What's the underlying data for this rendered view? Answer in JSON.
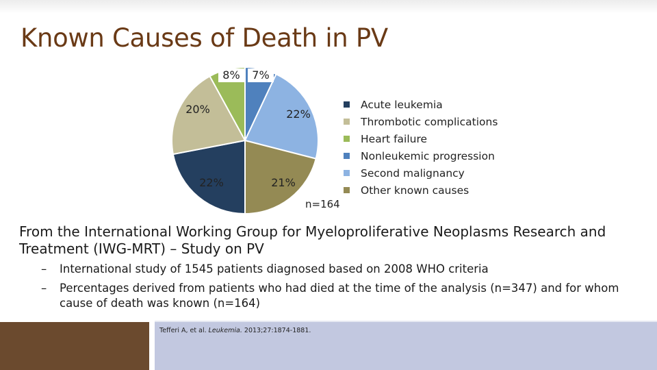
{
  "slide": {
    "title": "Known Causes of Death in PV",
    "source_line": "From the International Working Group for Myeloproliferative Neoplasms Research and Treatment (IWG-MRT) – Study on PV",
    "bullets": [
      "International study of 1545 patients diagnosed based on 2008 WHO criteria",
      "Percentages derived from patients who had died at the time of the analysis (n=347) and for whom cause of death was known (n=164)"
    ],
    "bullet_marker": "–",
    "citation": {
      "authors": "Tefferi A, et al.",
      "journal": "Leukemia.",
      "details": "2013;27:1874-1881."
    }
  },
  "chart_data": {
    "type": "pie",
    "n_label": "n=164",
    "slices": [
      {
        "name": "Acute leukemia",
        "value": 22,
        "label": "22%",
        "color": "#243f5f"
      },
      {
        "name": "Thrombotic complications",
        "value": 20,
        "label": "20%",
        "color": "#c3be98"
      },
      {
        "name": "Heart failure",
        "value": 8,
        "label": "8%",
        "color": "#9bbb59"
      },
      {
        "name": "Nonleukemic progression",
        "value": 7,
        "label": "7%",
        "color": "#4f81bd"
      },
      {
        "name": "Second malignancy",
        "value": 22,
        "label": "22%",
        "color": "#8db3e2"
      },
      {
        "name": "Other known causes",
        "value": 21,
        "label": "21%",
        "color": "#948a54"
      }
    ],
    "legend_order": [
      "Acute leukemia",
      "Thrombotic complications",
      "Heart failure",
      "Nonleukemic progression",
      "Second malignancy",
      "Other known causes"
    ]
  }
}
